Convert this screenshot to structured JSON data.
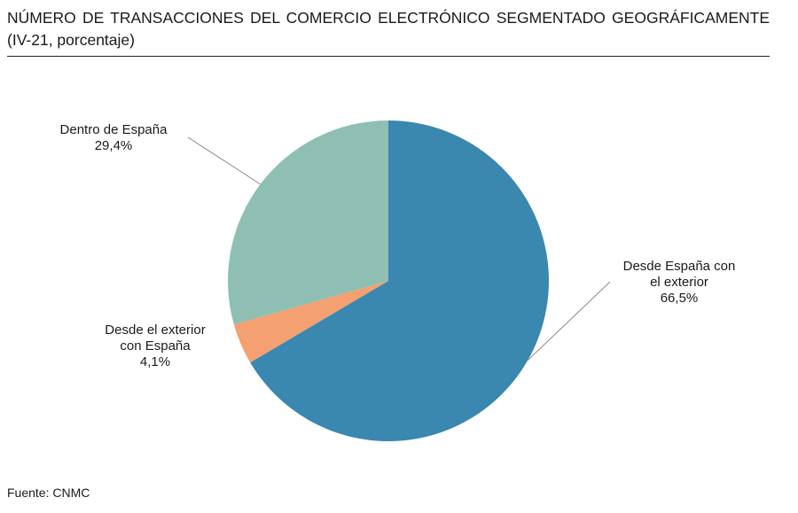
{
  "chart_data": {
    "type": "pie",
    "title": "NÚMERO DE TRANSACCIONES DEL COMERCIO ELECTRÓNICO SEGMENTADO GEOGRÁFICAMENTE (IV-21, porcentaje)",
    "slices": [
      {
        "label_lines": [
          "Desde España con",
          "el exterior"
        ],
        "value": 66.5,
        "value_label": "66,5%",
        "color": "#3a87b0"
      },
      {
        "label_lines": [
          "Desde el exterior",
          "con España"
        ],
        "value": 4.1,
        "value_label": "4,1%",
        "color": "#f4a070"
      },
      {
        "label_lines": [
          "Dentro de España"
        ],
        "value": 29.4,
        "value_label": "29,4%",
        "color": "#8fbfb3"
      }
    ],
    "start": "12 o'clock",
    "direction": "clockwise",
    "legend": "none",
    "source": "Fuente: CNMC"
  }
}
